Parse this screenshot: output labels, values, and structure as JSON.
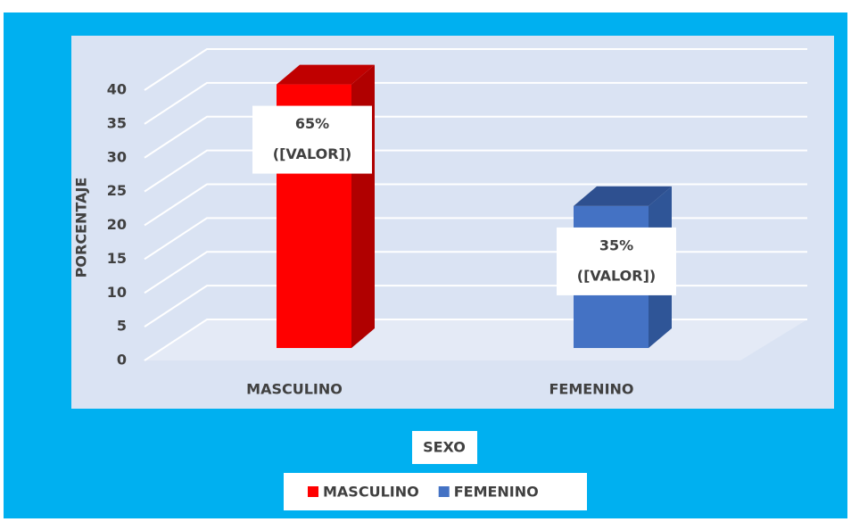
{
  "chart_data": {
    "type": "bar3d",
    "x_label": "SEXO",
    "y_label": "PORCENTAJE",
    "categories": [
      "MASCULINO",
      "FEMENINO"
    ],
    "series": [
      {
        "name": "MASCULINO",
        "color": "#ff0000",
        "side": "#b00000",
        "top": "#c00000",
        "values": [
          39,
          null
        ]
      },
      {
        "name": "FEMENINO",
        "color": "#4472c4",
        "side": "#2f5597",
        "top": "#2e5090",
        "values": [
          null,
          21
        ]
      }
    ],
    "annotations": [
      {
        "lines": [
          "65%",
          "([VALOR])"
        ]
      },
      {
        "lines": [
          "35%",
          "([VALOR])"
        ]
      }
    ],
    "ylim": [
      0,
      40
    ],
    "yticks": [
      0,
      5,
      10,
      15,
      20,
      25,
      30,
      35,
      40
    ],
    "grid": true,
    "legend": "bottom"
  }
}
